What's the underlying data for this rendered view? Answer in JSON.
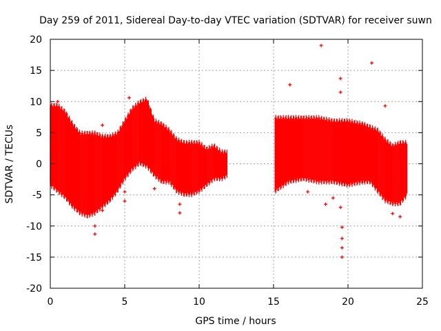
{
  "chart_data": {
    "type": "scatter",
    "title": "Day 259 of 2011, Sidereal Day-to-day VTEC variation (SDTVAR) for receiver suwn",
    "xlabel": "GPS time / hours",
    "ylabel": "SDTVAR / TECUs",
    "xlim": [
      0,
      25
    ],
    "ylim": [
      -20,
      20
    ],
    "xticks": [
      0,
      5,
      10,
      15,
      20,
      25
    ],
    "yticks": [
      -20,
      -15,
      -10,
      -5,
      0,
      5,
      10,
      15,
      20
    ],
    "grid": true,
    "series_color": "#ff0000",
    "series": [
      {
        "name": "SDTVAR",
        "envelope": [
          {
            "x": 0.0,
            "low": -3.5,
            "high": 9.5
          },
          {
            "x": 0.5,
            "low": -4.5,
            "high": 9.5
          },
          {
            "x": 1.0,
            "low": -5.5,
            "high": 8.5
          },
          {
            "x": 1.5,
            "low": -7.0,
            "high": 6.5
          },
          {
            "x": 2.0,
            "low": -8.0,
            "high": 5.0
          },
          {
            "x": 2.5,
            "low": -8.5,
            "high": 5.0
          },
          {
            "x": 3.0,
            "low": -8.0,
            "high": 5.0
          },
          {
            "x": 3.5,
            "low": -7.0,
            "high": 4.5
          },
          {
            "x": 4.0,
            "low": -6.0,
            "high": 4.5
          },
          {
            "x": 4.5,
            "low": -4.5,
            "high": 5.0
          },
          {
            "x": 5.0,
            "low": -2.5,
            "high": 7.0
          },
          {
            "x": 5.5,
            "low": -1.0,
            "high": 9.0
          },
          {
            "x": 6.0,
            "low": 0.0,
            "high": 10.0
          },
          {
            "x": 6.5,
            "low": -0.5,
            "high": 10.5
          },
          {
            "x": 7.0,
            "low": -2.0,
            "high": 7.0
          },
          {
            "x": 7.5,
            "low": -3.0,
            "high": 6.5
          },
          {
            "x": 8.0,
            "low": -3.0,
            "high": 5.5
          },
          {
            "x": 8.5,
            "low": -4.5,
            "high": 4.0
          },
          {
            "x": 9.0,
            "low": -5.0,
            "high": 3.5
          },
          {
            "x": 9.5,
            "low": -5.0,
            "high": 3.5
          },
          {
            "x": 10.0,
            "low": -4.5,
            "high": 3.5
          },
          {
            "x": 10.5,
            "low": -3.5,
            "high": 2.5
          },
          {
            "x": 11.0,
            "low": -2.5,
            "high": 3.0
          },
          {
            "x": 11.5,
            "low": -2.5,
            "high": 2.0
          },
          {
            "x": 11.9,
            "low": -2.0,
            "high": 2.0
          },
          {
            "x": 15.1,
            "low": -4.5,
            "high": 7.5
          },
          {
            "x": 16.0,
            "low": -3.0,
            "high": 7.5
          },
          {
            "x": 17.0,
            "low": -2.5,
            "high": 7.5
          },
          {
            "x": 18.0,
            "low": -3.0,
            "high": 7.5
          },
          {
            "x": 19.0,
            "low": -3.0,
            "high": 7.0
          },
          {
            "x": 20.0,
            "low": -3.5,
            "high": 7.0
          },
          {
            "x": 21.0,
            "low": -3.0,
            "high": 6.5
          },
          {
            "x": 21.5,
            "low": -3.0,
            "high": 6.0
          },
          {
            "x": 22.0,
            "low": -4.5,
            "high": 5.5
          },
          {
            "x": 22.5,
            "low": -6.0,
            "high": 4.0
          },
          {
            "x": 23.0,
            "low": -6.5,
            "high": 3.0
          },
          {
            "x": 23.5,
            "low": -6.5,
            "high": 3.5
          },
          {
            "x": 24.0,
            "low": -5.0,
            "high": 3.5
          }
        ],
        "outliers": [
          {
            "x": 0.5,
            "y": 10.0
          },
          {
            "x": 3.0,
            "y": -10.0
          },
          {
            "x": 3.0,
            "y": -11.3
          },
          {
            "x": 3.5,
            "y": 6.2
          },
          {
            "x": 3.5,
            "y": -7.5
          },
          {
            "x": 5.0,
            "y": -4.5
          },
          {
            "x": 5.0,
            "y": -6.0
          },
          {
            "x": 5.3,
            "y": 10.6
          },
          {
            "x": 7.0,
            "y": -4.0
          },
          {
            "x": 8.7,
            "y": -7.9
          },
          {
            "x": 8.7,
            "y": -6.5
          },
          {
            "x": 16.1,
            "y": 12.7
          },
          {
            "x": 17.3,
            "y": -4.5
          },
          {
            "x": 18.2,
            "y": 19.0
          },
          {
            "x": 18.5,
            "y": -6.5
          },
          {
            "x": 19.0,
            "y": -5.5
          },
          {
            "x": 19.5,
            "y": 13.7
          },
          {
            "x": 19.5,
            "y": 11.5
          },
          {
            "x": 19.5,
            "y": -7.0
          },
          {
            "x": 19.6,
            "y": -10.2
          },
          {
            "x": 19.6,
            "y": -12.0
          },
          {
            "x": 19.6,
            "y": -13.5
          },
          {
            "x": 19.6,
            "y": -15.0
          },
          {
            "x": 21.6,
            "y": 16.2
          },
          {
            "x": 22.5,
            "y": 9.3
          },
          {
            "x": 23.0,
            "y": -8.0
          },
          {
            "x": 23.5,
            "y": -8.5
          }
        ]
      }
    ]
  }
}
